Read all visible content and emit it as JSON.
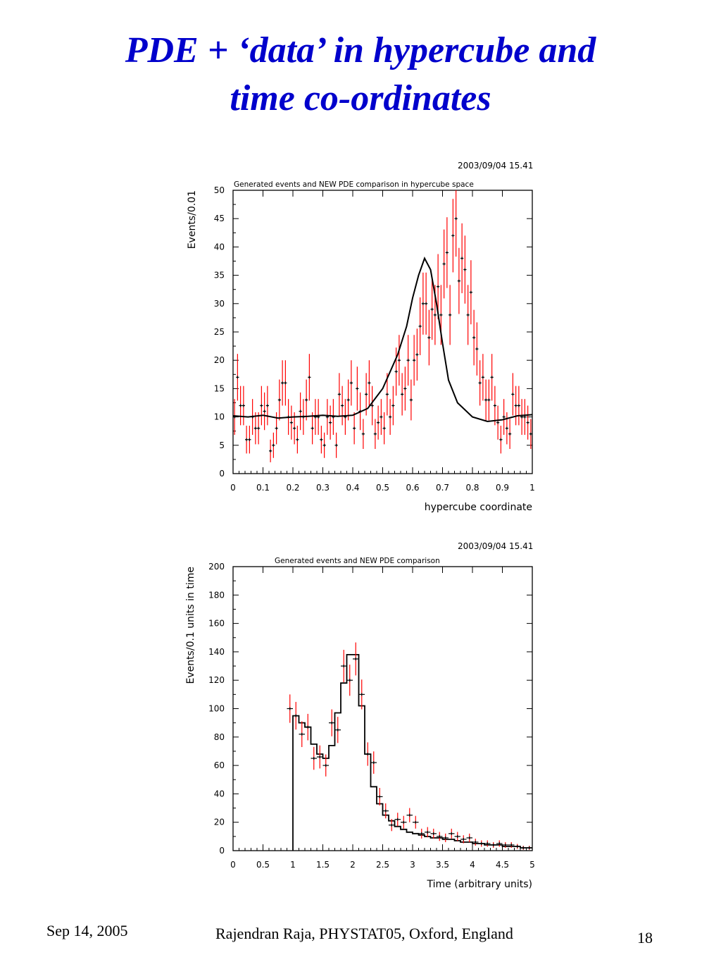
{
  "slide": {
    "title_line1": "PDE + ‘data’ in hypercube and",
    "title_line2": "time co-ordinates"
  },
  "footer": {
    "date": "Sep 14, 2005",
    "author": "Rajendran Raja, PHYSTAT05, Oxford, England",
    "page": "18"
  },
  "colors": {
    "title": "#0000cc",
    "error_bar": "#ff0000",
    "data_marker": "#000000",
    "curve": "#000000"
  },
  "chart_data": [
    {
      "type": "scatter",
      "timestamp": "2003/09/04   15.41",
      "title": "Generated events and NEW PDE comparison in hypercube space",
      "xlabel": "hypercube coordinate",
      "ylabel": "Events/0.01",
      "xlim": [
        0,
        1
      ],
      "ylim": [
        0,
        50
      ],
      "xticks": [
        "0",
        "0.1",
        "0.2",
        "0.3",
        "0.4",
        "0.5",
        "0.6",
        "0.7",
        "0.8",
        "0.9",
        "1"
      ],
      "yticks": [
        "0",
        "5",
        "10",
        "15",
        "20",
        "25",
        "30",
        "35",
        "40",
        "45",
        "50"
      ],
      "bin_width": 0.01,
      "series": [
        {
          "kind": "data_points_with_error_bars",
          "x_start": 0.005,
          "values": [
            10,
            17,
            12,
            12,
            6,
            6,
            10,
            8,
            8,
            12,
            11,
            12,
            4,
            5,
            8,
            13,
            16,
            16,
            10,
            9,
            8,
            6,
            11,
            10,
            13,
            17,
            8,
            10,
            10,
            6,
            5,
            10,
            9,
            10,
            5,
            14,
            12,
            10,
            13,
            16,
            8,
            15,
            11,
            7,
            14,
            16,
            12,
            7,
            9,
            10,
            8,
            14,
            10,
            12,
            18,
            20,
            14,
            15,
            20,
            13,
            20,
            21,
            26,
            30,
            30,
            24,
            29,
            28,
            33,
            28,
            37,
            39,
            28,
            42,
            45,
            34,
            38,
            36,
            28,
            32,
            24,
            22,
            16,
            17,
            13,
            13,
            17,
            12,
            9,
            6,
            10,
            8,
            7,
            14,
            12,
            12,
            10,
            10,
            9,
            7,
            10,
            6,
            14,
            11,
            18,
            8,
            14,
            8,
            12,
            6,
            10,
            8,
            14,
            7,
            10,
            13,
            16,
            7,
            10,
            8,
            10
          ]
        },
        {
          "kind": "pde_curve",
          "x": [
            0,
            0.05,
            0.1,
            0.15,
            0.2,
            0.25,
            0.3,
            0.35,
            0.4,
            0.45,
            0.5,
            0.55,
            0.58,
            0.6,
            0.62,
            0.64,
            0.66,
            0.68,
            0.7,
            0.72,
            0.75,
            0.8,
            0.85,
            0.9,
            0.95,
            1.0
          ],
          "y": [
            10.2,
            10,
            10.3,
            9.8,
            10,
            10.1,
            10.3,
            10.1,
            10.3,
            11.5,
            15,
            21,
            26,
            31,
            35,
            38,
            36,
            30,
            23,
            16.5,
            12.5,
            10,
            9.2,
            9.5,
            10.2,
            10.4
          ]
        }
      ]
    },
    {
      "type": "line",
      "timestamp": "2003/09/04   15.41",
      "title": "Generated events and NEW PDE comparison",
      "xlabel": "Time (arbitrary units)",
      "ylabel": "Events/0.1 units in time",
      "xlim": [
        0,
        5
      ],
      "ylim": [
        0,
        200
      ],
      "xticks": [
        "0",
        "0.5",
        "1",
        "1.5",
        "2",
        "2.5",
        "3",
        "3.5",
        "4",
        "4.5",
        "5"
      ],
      "yticks": [
        "0",
        "20",
        "40",
        "60",
        "80",
        "100",
        "120",
        "140",
        "160",
        "180",
        "200"
      ],
      "bin_width": 0.1,
      "series": [
        {
          "kind": "pde_histogram",
          "x_start": 1.0,
          "values": [
            95,
            90,
            87,
            75,
            68,
            65,
            74,
            97,
            118,
            138,
            138,
            102,
            68,
            45,
            33,
            25,
            21,
            17,
            15,
            13,
            12,
            11,
            10,
            9,
            9,
            8,
            8,
            7,
            6,
            6,
            5,
            5,
            4,
            4,
            4,
            3,
            3,
            3,
            2,
            2
          ]
        },
        {
          "kind": "data_points_with_error_bars",
          "x_start": 0.95,
          "values": [
            100,
            95,
            82,
            87,
            65,
            66,
            60,
            90,
            85,
            130,
            120,
            135,
            110,
            68,
            62,
            38,
            28,
            18,
            22,
            20,
            25,
            20,
            12,
            13,
            12,
            10,
            9,
            12,
            10,
            8,
            9,
            6,
            5,
            5,
            4,
            5,
            4,
            4,
            3,
            2,
            2
          ]
        }
      ]
    }
  ]
}
